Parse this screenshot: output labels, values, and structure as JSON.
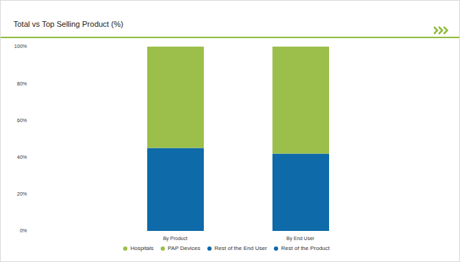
{
  "chart_data": {
    "type": "bar",
    "title": "Total vs Top Selling Product (%)",
    "categories": [
      "By Product",
      "By End User"
    ],
    "series": [
      {
        "name": "Rest of the Product",
        "color": "#0e6aa8",
        "values": [
          45,
          null
        ]
      },
      {
        "name": "PAP Devices",
        "color": "#9bbf4a",
        "values": [
          55,
          null
        ]
      },
      {
        "name": "Rest of the End User",
        "color": "#0e6aa8",
        "values": [
          null,
          42
        ]
      },
      {
        "name": "Hospitals",
        "color": "#9bbf4a",
        "values": [
          null,
          58
        ]
      }
    ],
    "ylim": [
      0,
      100
    ],
    "yticks": [
      {
        "value": 0,
        "label": "0%"
      },
      {
        "value": 20,
        "label": "20%"
      },
      {
        "value": 40,
        "label": "40%"
      },
      {
        "value": 60,
        "label": "60%"
      },
      {
        "value": 80,
        "label": "80%"
      },
      {
        "value": 100,
        "label": "100%"
      }
    ],
    "stacked": true,
    "grid": false,
    "legend": "bottom"
  }
}
